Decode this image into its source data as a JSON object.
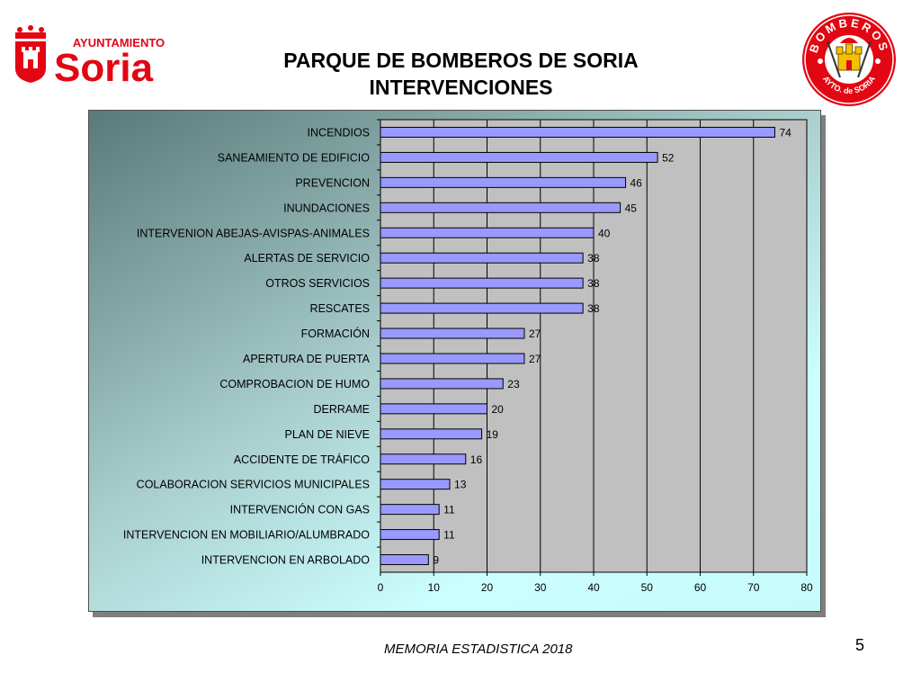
{
  "header": {
    "logo_left": {
      "small_text": "AYUNTAMIENTO",
      "big_text": "Soria"
    },
    "logo_right": {
      "top_text": "BOMBEROS",
      "bottom_text": "AYTO. de SORIA"
    },
    "title_line1": "PARQUE DE BOMBEROS DE SORIA",
    "title_line2": "INTERVENCIONES"
  },
  "footer": {
    "text": "MEMORIA ESTADISTICA 2018",
    "page_number": "5"
  },
  "colors": {
    "brand_red": "#e30613",
    "bar_fill": "#9999ff",
    "plot_background": "#c0c0c0",
    "panel_gradient_dark": "#5a7a79",
    "panel_gradient_light": "#ccffff"
  },
  "chart_data": {
    "type": "bar",
    "orientation": "horizontal",
    "categories": [
      "INCENDIOS",
      "SANEAMIENTO DE EDIFICIO",
      "PREVENCION",
      "INUNDACIONES",
      "INTERVENION ABEJAS-AVISPAS-ANIMALES",
      "ALERTAS DE SERVICIO",
      "OTROS SERVICIOS",
      "RESCATES",
      "FORMACIÓN",
      "APERTURA DE PUERTA",
      "COMPROBACION DE HUMO",
      "DERRAME",
      "PLAN DE NIEVE",
      "ACCIDENTE DE TRÁFICO",
      "COLABORACION SERVICIOS MUNICIPALES",
      "INTERVENCIÓN CON GAS",
      "INTERVENCION EN MOBILIARIO/ALUMBRADO",
      "INTERVENCION EN ARBOLADO"
    ],
    "values": [
      74,
      52,
      46,
      45,
      40,
      38,
      38,
      38,
      27,
      27,
      23,
      20,
      19,
      16,
      13,
      11,
      11,
      9
    ],
    "xlim": [
      0,
      80
    ],
    "xticks": [
      0,
      10,
      20,
      30,
      40,
      50,
      60,
      70,
      80
    ],
    "grid": true,
    "data_labels": true,
    "legend": "none"
  }
}
